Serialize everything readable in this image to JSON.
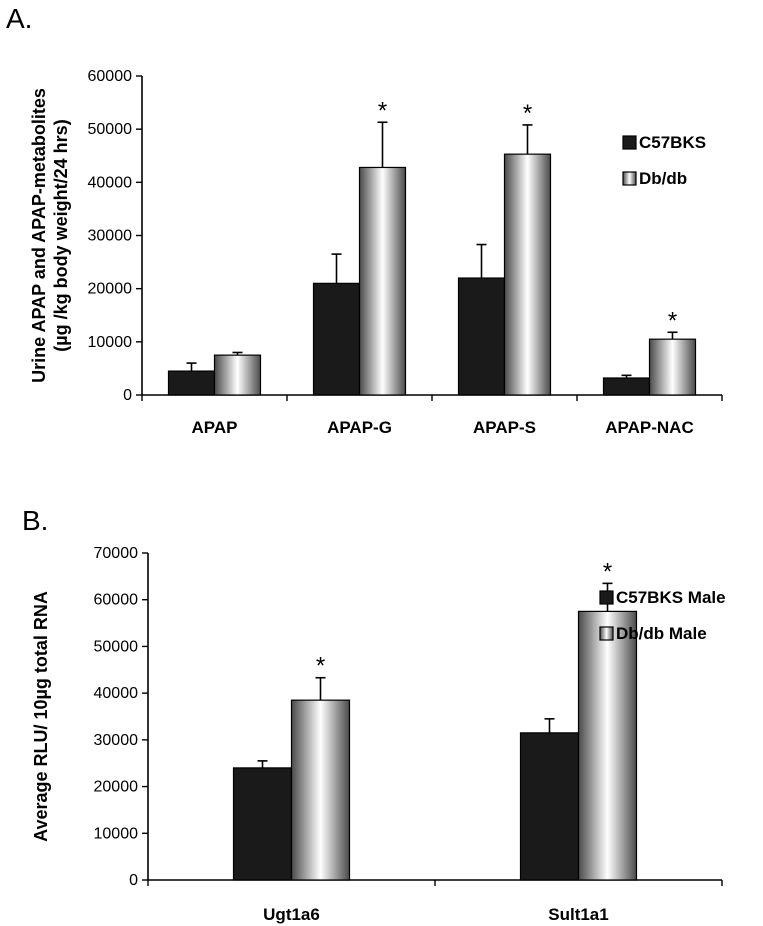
{
  "panel_a": {
    "label": "A."
  },
  "panel_b": {
    "label": "B."
  },
  "colors": {
    "series1": "#1a1a1a",
    "series2_dark": "#4a4a4a",
    "series2_light": "#ffffff"
  },
  "chart_data": [
    {
      "type": "bar",
      "title": "",
      "ylabel": [
        "Urine APAP and APAP-metabolites",
        "(µg /kg body weight/24 hrs)"
      ],
      "ylim": [
        0,
        60000
      ],
      "yticks": [
        0,
        10000,
        20000,
        30000,
        40000,
        50000,
        60000
      ],
      "categories": [
        "APAP",
        "APAP-G",
        "APAP-S",
        "APAP-NAC"
      ],
      "legend_position": "top-right",
      "series": [
        {
          "name": "C57BKS",
          "values": [
            4500,
            21000,
            22000,
            3200
          ],
          "errors": [
            1500,
            5500,
            6300,
            500
          ],
          "significant": [
            false,
            false,
            false,
            false
          ]
        },
        {
          "name": "Db/db",
          "values": [
            7500,
            42800,
            45300,
            10500
          ],
          "errors": [
            500,
            8500,
            5500,
            1300
          ],
          "significant": [
            false,
            true,
            true,
            true
          ]
        }
      ],
      "significance_marker": "*"
    },
    {
      "type": "bar",
      "title": "",
      "ylabel": [
        "Average RLU/ 10µg total RNA"
      ],
      "ylim": [
        0,
        70000
      ],
      "yticks": [
        0,
        10000,
        20000,
        30000,
        40000,
        50000,
        60000,
        70000
      ],
      "categories": [
        "Ugt1a6",
        "Sult1a1"
      ],
      "legend_position": "top-right",
      "series": [
        {
          "name": "C57BKS Male",
          "values": [
            24000,
            31500
          ],
          "errors": [
            1500,
            3000
          ],
          "significant": [
            false,
            false
          ]
        },
        {
          "name": "Db/db Male",
          "values": [
            38500,
            57500
          ],
          "errors": [
            4800,
            6000
          ],
          "significant": [
            true,
            true
          ]
        }
      ],
      "significance_marker": "*"
    }
  ]
}
